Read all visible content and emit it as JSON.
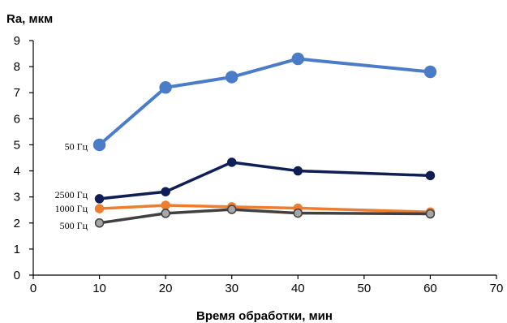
{
  "chart_data": {
    "type": "line",
    "title": "",
    "ylabel": "Ra, мкм",
    "xlabel": "Время обработки, мин",
    "xlim": [
      0,
      70
    ],
    "ylim": [
      0,
      9
    ],
    "x_ticks": [
      0,
      10,
      20,
      30,
      40,
      50,
      60,
      70
    ],
    "y_ticks": [
      0,
      1,
      2,
      3,
      4,
      5,
      6,
      7,
      8,
      9
    ],
    "grid": false,
    "legend": "inline labels left of series",
    "series": [
      {
        "name": "50 Гц",
        "color": "#4a7cc7",
        "marker_fill": "#4a7cc7",
        "x": [
          10,
          20,
          30,
          40,
          60
        ],
        "values": [
          5.0,
          7.2,
          7.6,
          8.3,
          7.8
        ]
      },
      {
        "name": "2500 Гц",
        "color": "#0f1e55",
        "marker_fill": "#0f1e55",
        "x": [
          10,
          20,
          30,
          40,
          60
        ],
        "values": [
          2.93,
          3.2,
          4.33,
          4.0,
          3.82
        ]
      },
      {
        "name": "1000 Гц",
        "color": "#ed7d31",
        "marker_fill": "#ed7d31",
        "x": [
          10,
          20,
          30,
          40,
          60
        ],
        "values": [
          2.55,
          2.68,
          2.62,
          2.57,
          2.42
        ]
      },
      {
        "name": "500 Гц",
        "color": "#404040",
        "marker_fill": "#a6a6a6",
        "x": [
          10,
          20,
          30,
          40,
          60
        ],
        "values": [
          2.0,
          2.37,
          2.52,
          2.38,
          2.35
        ]
      }
    ]
  }
}
